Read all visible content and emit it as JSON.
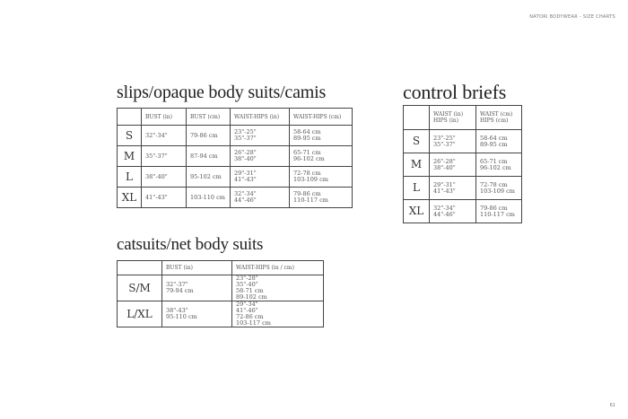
{
  "header": "NATORI BODYWEAR - SIZE CHARTS",
  "page_number": "61",
  "slips": {
    "title": "slips/opaque body suits/camis",
    "headers": [
      "",
      "BUST (in)",
      "BUST (cm)",
      "WAIST-HIPS (in)",
      "WAIST-HIPS (cm)"
    ],
    "rows": [
      [
        "S",
        "32\"-34\"",
        "79-86 cm",
        "23\"-25\"\n35\"-37\"",
        "58-64 cm\n89-95 cm"
      ],
      [
        "M",
        "35\"-37\"",
        "87-94 cm",
        "26\"-28\"\n38\"-40\"",
        "65-71 cm\n96-102 cm"
      ],
      [
        "L",
        "38\"-40\"",
        "95-102 cm",
        "29\"-31\"\n41\"-43\"",
        "72-78 cm\n103-109 cm"
      ],
      [
        "XL",
        "41\"-43\"",
        "103-110 cm",
        "32\"-34\"\n44\"-46\"",
        "79-86 cm\n110-117 cm"
      ]
    ]
  },
  "control_briefs": {
    "title": "control briefs",
    "headers": [
      "",
      "WAIST (in)\nHIPS (in)",
      "WAIST (cm)\nHIPS (cm)"
    ],
    "rows": [
      [
        "S",
        "23\"-25\"\n35\"-37\"",
        "58-64 cm\n89-95 cm"
      ],
      [
        "M",
        "26\"-28\"\n38\"-40\"",
        "65-71 cm\n96-102 cm"
      ],
      [
        "L",
        "29\"-31\"\n41\"-43\"",
        "72-78 cm\n103-109 cm"
      ],
      [
        "XL",
        "32\"-34\"\n44\"-46\"",
        "79-86 cm\n110-117 cm"
      ]
    ]
  },
  "catsuits": {
    "title": "catsuits/net body suits",
    "headers": [
      "",
      "BUST (in)",
      "WAIST-HIPS (in / cm)"
    ],
    "rows": [
      [
        "S/M",
        "32\"-37\"\n79-94 cm",
        "23\"-28\"\n35\"-40\"",
        "58-71 cm\n89-102 cm"
      ],
      [
        "L/XL",
        "38\"-43\"\n   95-110 cm",
        "29\"-34\"\n41\"-46\"",
        "72-86 cm\n103-117 cm"
      ]
    ]
  }
}
